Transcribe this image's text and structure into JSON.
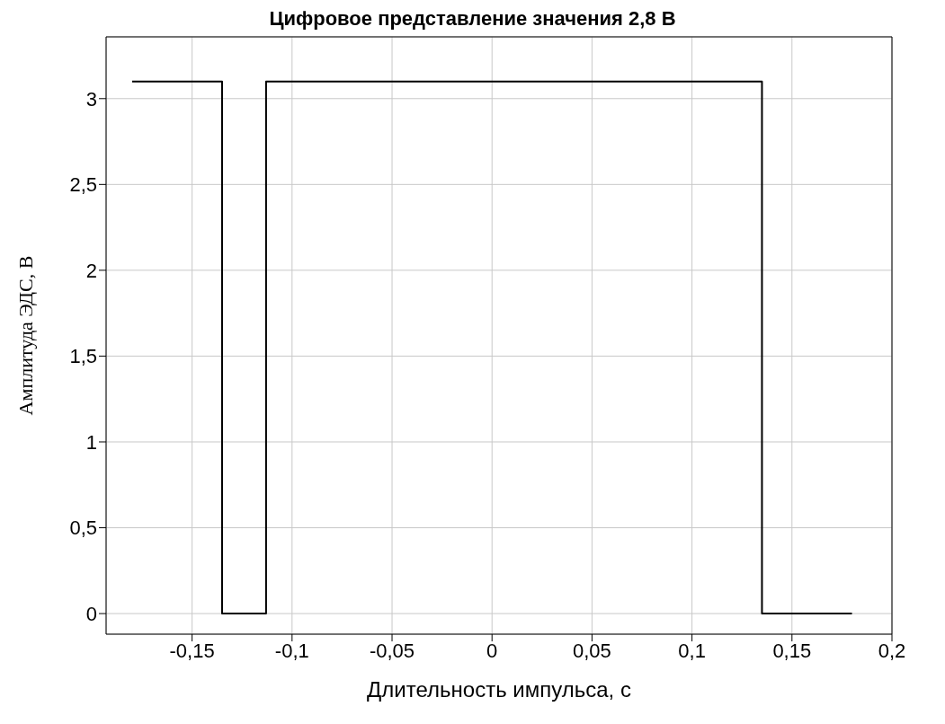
{
  "chart_data": {
    "type": "step",
    "title": "Цифровое представление значения 2,8 В",
    "xlabel": "Длительность импульса, с",
    "ylabel": "Амплитуда ЭДС, В",
    "x": [
      -0.18,
      -0.135,
      -0.113,
      0.135,
      0.18
    ],
    "series": [
      {
        "color": "#000000",
        "values": [
          3.1,
          0,
          3.1,
          0,
          0
        ]
      }
    ],
    "xlim": [
      -0.193,
      0.2
    ],
    "ylim": [
      -0.12,
      3.36
    ],
    "xticks": [
      {
        "value": -0.15,
        "label": "-0,15"
      },
      {
        "value": -0.1,
        "label": "-0,1"
      },
      {
        "value": -0.05,
        "label": "-0,05"
      },
      0,
      {
        "value": 0.05,
        "label": "0,05"
      },
      {
        "value": 0.1,
        "label": "0,1"
      },
      {
        "value": 0.15,
        "label": "0,15"
      },
      {
        "value": 0.2,
        "label": "0,2"
      }
    ],
    "yticks": [
      0,
      {
        "value": 0.5,
        "label": "0,5"
      },
      1,
      {
        "value": 1.5,
        "label": "1,5"
      },
      2,
      {
        "value": 2.5,
        "label": "2,5"
      },
      3
    ],
    "grid": true,
    "marker": "none",
    "line_style": "solid"
  }
}
